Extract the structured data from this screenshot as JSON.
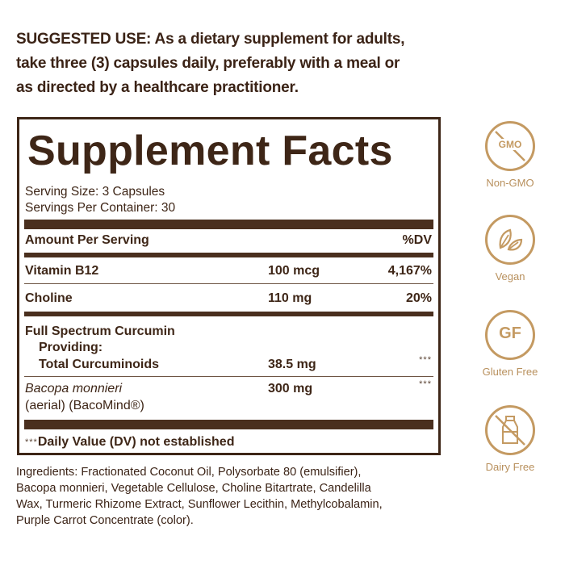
{
  "suggested_use": [
    "SUGGESTED USE: As a dietary supplement for adults,",
    "take three (3) capsules daily, preferably with a meal or",
    "as directed by a healthcare practitioner."
  ],
  "facts": {
    "title": "Supplement Facts",
    "serving_size": "Serving Size: 3 Capsules",
    "servings_per_container": "Servings Per Container: 30",
    "header": {
      "amount": "Amount Per Serving",
      "dv": "%DV"
    },
    "rows": [
      {
        "name": "Vitamin B12",
        "amount": "100 mcg",
        "dv": "4,167%"
      },
      {
        "name": "Choline",
        "amount": "110 mg",
        "dv": "20%"
      }
    ],
    "curcumin": {
      "line1": "Full Spectrum Curcumin",
      "line2": "Providing:",
      "line3": "Total Curcuminoids",
      "amount": "38.5 mg",
      "dv": "***"
    },
    "bacopa": {
      "name_italic": "Bacopa monnieri",
      "name_line2": "(aerial) (BacoMind®)",
      "amount": "300 mg",
      "dv": "***"
    },
    "footnote_stars": "***",
    "footnote": "Daily Value (DV) not established"
  },
  "ingredients": [
    "Ingredients: Fractionated Coconut Oil, Polysorbate 80 (emulsifier),",
    "Bacopa monnieri, Vegetable Cellulose, Choline Bitartrate, Candelilla",
    "Wax, Turmeric Rhizome Extract, Sunflower Lecithin, Methylcobalamin,",
    "Purple Carrot Concentrate (color)."
  ],
  "badges": [
    {
      "icon": "gmo-crossed-icon",
      "icon_text": "GMO",
      "label": "Non-GMO"
    },
    {
      "icon": "leaf-icon",
      "label": "Vegan"
    },
    {
      "icon": "gf-icon",
      "icon_text": "GF",
      "label": "Gluten Free"
    },
    {
      "icon": "milk-bottle-crossed-icon",
      "label": "Dairy Free"
    }
  ],
  "colors": {
    "text_brown": "#3e2617",
    "badge_gold": "#c49a62"
  }
}
